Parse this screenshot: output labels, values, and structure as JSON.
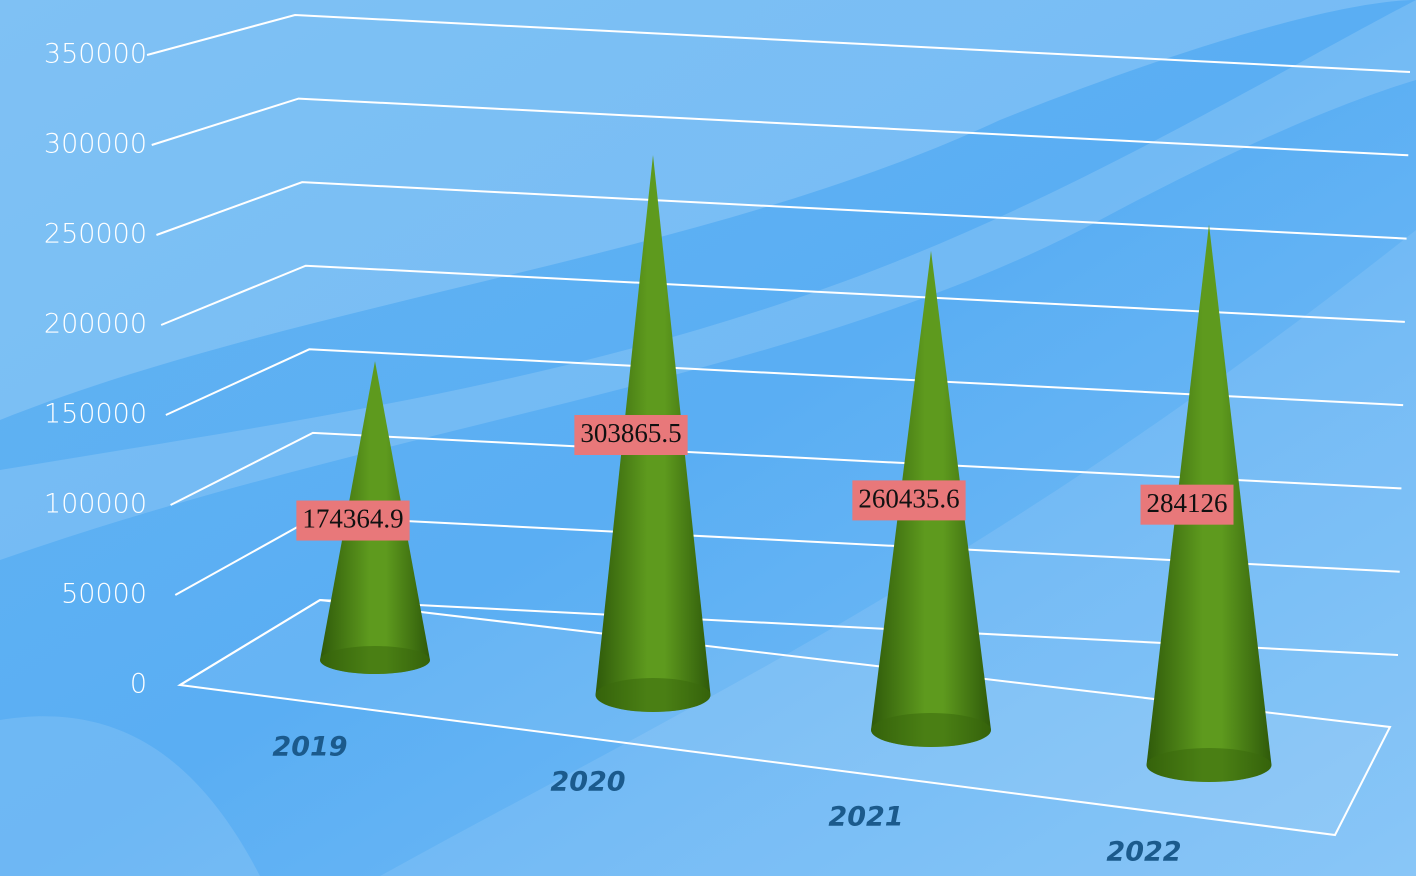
{
  "chart_data": {
    "type": "cone",
    "categories": [
      "2019",
      "2020",
      "2021",
      "2022"
    ],
    "values": [
      174364.9,
      303865.5,
      260435.6,
      284126
    ],
    "color": "#5e9a1e",
    "ylim": [
      0,
      350000
    ],
    "yticks": [
      0,
      50000,
      100000,
      150000,
      200000,
      250000,
      300000,
      350000
    ],
    "grid": true
  }
}
